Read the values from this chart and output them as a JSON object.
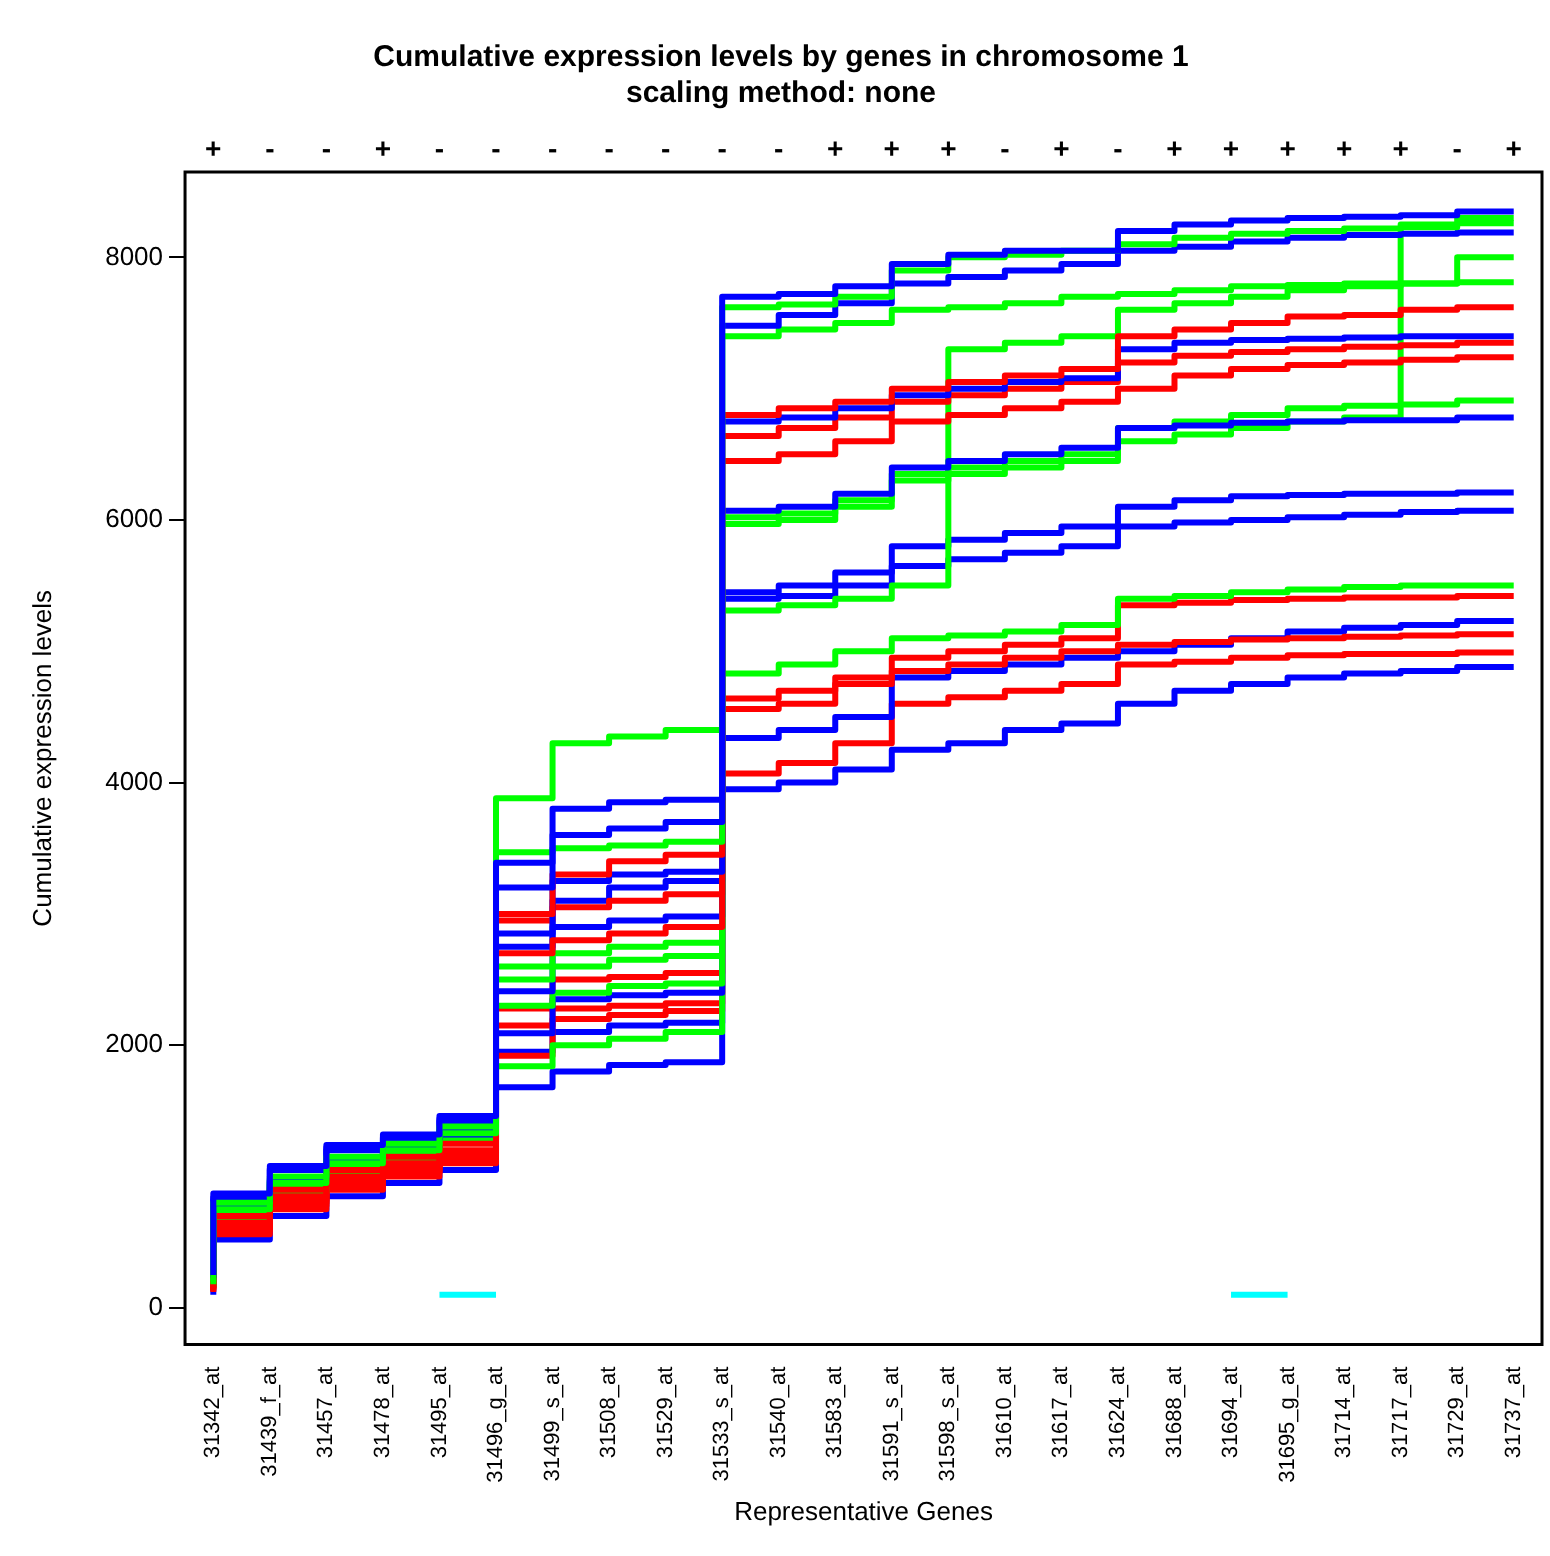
{
  "chart_data": {
    "type": "step",
    "title": "Cumulative expression levels by genes in chromosome 1",
    "subtitle": "scaling method: none",
    "xlabel": "Representative Genes",
    "ylabel": "Cumulative expression levels",
    "categories": [
      "31342_at",
      "31439_f_at",
      "31457_at",
      "31478_at",
      "31495_at",
      "31496_g_at",
      "31499_s_at",
      "31508_at",
      "31529_at",
      "31533_s_at",
      "31540_at",
      "31583_at",
      "31591_s_at",
      "31598_s_at",
      "31610_at",
      "31617_at",
      "31624_at",
      "31688_at",
      "31694_at",
      "31695_g_at",
      "31714_at",
      "31717_at",
      "31729_at",
      "31737_at"
    ],
    "ylim": [
      -280,
      8650
    ],
    "yticks": [
      0,
      2000,
      4000,
      6000,
      8000
    ],
    "annotations": [
      "+",
      "-",
      "-",
      "+",
      "-",
      "-",
      "-",
      "-",
      "-",
      "-",
      "-",
      "+",
      "+",
      "+",
      "-",
      "+",
      "-",
      "+",
      "+",
      "+",
      "+",
      "+",
      "-",
      "+"
    ],
    "series": [
      {
        "color": "#0000ff",
        "values": [
          250,
          870,
          1080,
          1240,
          1320,
          1460,
          3390,
          3800,
          3850,
          3870,
          7700,
          7720,
          7780,
          7950,
          8020,
          8050,
          8050,
          8200,
          8250,
          8280,
          8300,
          8310,
          8320,
          8350
        ]
      },
      {
        "color": "#00ff00",
        "values": [
          200,
          800,
          1000,
          1150,
          1250,
          1380,
          3880,
          4300,
          4350,
          4400,
          7620,
          7640,
          7700,
          7900,
          8000,
          8020,
          8050,
          8100,
          8150,
          8180,
          8200,
          8220,
          8230,
          8300
        ]
      },
      {
        "color": "#0000ff",
        "values": [
          230,
          820,
          1050,
          1200,
          1290,
          1420,
          3200,
          3600,
          3650,
          3700,
          7480,
          7560,
          7650,
          7800,
          7850,
          7900,
          7950,
          8050,
          8080,
          8120,
          8150,
          8170,
          8180,
          8190
        ]
      },
      {
        "color": "#00ff00",
        "values": [
          180,
          750,
          950,
          1100,
          1200,
          1330,
          3470,
          3500,
          3520,
          3550,
          7400,
          7450,
          7500,
          7600,
          7620,
          7650,
          7700,
          7720,
          7750,
          7780,
          7790,
          7800,
          7800,
          8000
        ]
      },
      {
        "color": "#ff0000",
        "values": [
          150,
          700,
          900,
          1050,
          1150,
          1250,
          3000,
          3300,
          3400,
          3450,
          6800,
          6850,
          6900,
          7000,
          7050,
          7100,
          7150,
          7400,
          7450,
          7500,
          7550,
          7560,
          7600,
          7620
        ]
      },
      {
        "color": "#0000ff",
        "values": [
          220,
          780,
          980,
          1130,
          1230,
          1350,
          2850,
          3250,
          3300,
          3320,
          6750,
          6780,
          6850,
          6950,
          7000,
          7050,
          7080,
          7300,
          7350,
          7370,
          7380,
          7390,
          7400,
          7400
        ]
      },
      {
        "color": "#ff0000",
        "values": [
          140,
          650,
          850,
          1000,
          1100,
          1200,
          2950,
          3050,
          3100,
          3150,
          6640,
          6700,
          6780,
          6900,
          6950,
          7000,
          7050,
          7200,
          7250,
          7280,
          7300,
          7320,
          7330,
          7350
        ]
      },
      {
        "color": "#ff0000",
        "values": [
          130,
          600,
          800,
          950,
          1050,
          1150,
          2700,
          2800,
          2850,
          2900,
          6450,
          6500,
          6600,
          6750,
          6800,
          6850,
          6900,
          7000,
          7100,
          7150,
          7180,
          7200,
          7220,
          7240
        ]
      },
      {
        "color": "#0000ff",
        "values": [
          210,
          760,
          960,
          1120,
          1210,
          1320,
          2750,
          2900,
          2950,
          2980,
          6070,
          6100,
          6200,
          6400,
          6450,
          6500,
          6550,
          6700,
          6720,
          6740,
          6750,
          6760,
          6760,
          6780
        ]
      },
      {
        "color": "#00ff00",
        "values": [
          170,
          720,
          920,
          1080,
          1180,
          1300,
          2600,
          2700,
          2750,
          2780,
          5970,
          6000,
          6100,
          6300,
          6350,
          6400,
          6450,
          6600,
          6650,
          6700,
          6750,
          6780,
          8250,
          8260
        ]
      },
      {
        "color": "#00ff00",
        "values": [
          160,
          680,
          880,
          1040,
          1140,
          1260,
          2500,
          2600,
          2650,
          2680,
          5310,
          5350,
          5400,
          5500,
          7300,
          7350,
          7400,
          7600,
          7650,
          7700,
          7750,
          7780,
          7800,
          7810
        ]
      },
      {
        "color": "#0000ff",
        "values": [
          240,
          840,
          1060,
          1220,
          1300,
          1440,
          2410,
          3100,
          3200,
          3250,
          5450,
          5500,
          5600,
          5800,
          5850,
          5900,
          5950,
          6100,
          6150,
          6180,
          6190,
          6200,
          6200,
          6210
        ]
      },
      {
        "color": "#00ff00",
        "values": [
          160,
          700,
          900,
          1060,
          1160,
          1280,
          2300,
          2400,
          2450,
          2470,
          6020,
          6050,
          6150,
          6350,
          6400,
          6450,
          6500,
          6700,
          6750,
          6800,
          6850,
          6870,
          6880,
          6910
        ]
      },
      {
        "color": "#0000ff",
        "values": [
          200,
          770,
          970,
          1110,
          1220,
          1340,
          2090,
          2350,
          2380,
          2400,
          5400,
          5420,
          5500,
          5650,
          5700,
          5750,
          5800,
          5950,
          5980,
          6000,
          6020,
          6040,
          6060,
          6070
        ]
      },
      {
        "color": "#00ff00",
        "values": [
          180,
          710,
          910,
          1070,
          1170,
          1290,
          1840,
          2000,
          2050,
          2100,
          4830,
          4900,
          5000,
          5100,
          5120,
          5150,
          5200,
          5400,
          5420,
          5450,
          5470,
          5490,
          5500,
          5500
        ]
      },
      {
        "color": "#ff0000",
        "values": [
          150,
          620,
          820,
          970,
          1070,
          1170,
          2280,
          2500,
          2520,
          2550,
          4640,
          4700,
          4800,
          4950,
          5000,
          5050,
          5100,
          5350,
          5370,
          5390,
          5400,
          5410,
          5410,
          5420
        ]
      },
      {
        "color": "#ff0000",
        "values": [
          140,
          590,
          780,
          930,
          1030,
          1130,
          1920,
          2200,
          2230,
          2260,
          4560,
          4600,
          4750,
          4850,
          4900,
          4950,
          5000,
          5050,
          5070,
          5090,
          5100,
          5110,
          5120,
          5130
        ]
      },
      {
        "color": "#0000ff",
        "values": [
          190,
          740,
          940,
          1090,
          1200,
          1310,
          1950,
          2100,
          2150,
          2170,
          4340,
          4400,
          4500,
          4800,
          4850,
          4900,
          4950,
          5000,
          5050,
          5100,
          5150,
          5180,
          5200,
          5230
        ]
      },
      {
        "color": "#ff0000",
        "values": [
          120,
          560,
          750,
          900,
          1000,
          1100,
          2150,
          2280,
          2300,
          2320,
          4070,
          4150,
          4300,
          4600,
          4650,
          4700,
          4750,
          4900,
          4920,
          4950,
          4970,
          4980,
          4980,
          4990
        ]
      },
      {
        "color": "#0000ff",
        "values": [
          100,
          520,
          700,
          850,
          950,
          1050,
          1680,
          1800,
          1850,
          1870,
          3950,
          4000,
          4100,
          4250,
          4300,
          4400,
          4450,
          4600,
          4700,
          4750,
          4800,
          4830,
          4850,
          4880
        ]
      },
      {
        "color": "#00ffff",
        "values": [
          null,
          null,
          null,
          null,
          100,
          100,
          null,
          null,
          null,
          null,
          null,
          null,
          null,
          null,
          null,
          null,
          null,
          null,
          null,
          null,
          null,
          null,
          null,
          null
        ]
      },
      {
        "color": "#00ffff",
        "values": [
          null,
          null,
          null,
          null,
          null,
          null,
          null,
          null,
          null,
          null,
          null,
          null,
          null,
          null,
          null,
          null,
          null,
          null,
          100,
          100,
          null,
          null,
          null,
          null
        ]
      }
    ]
  }
}
